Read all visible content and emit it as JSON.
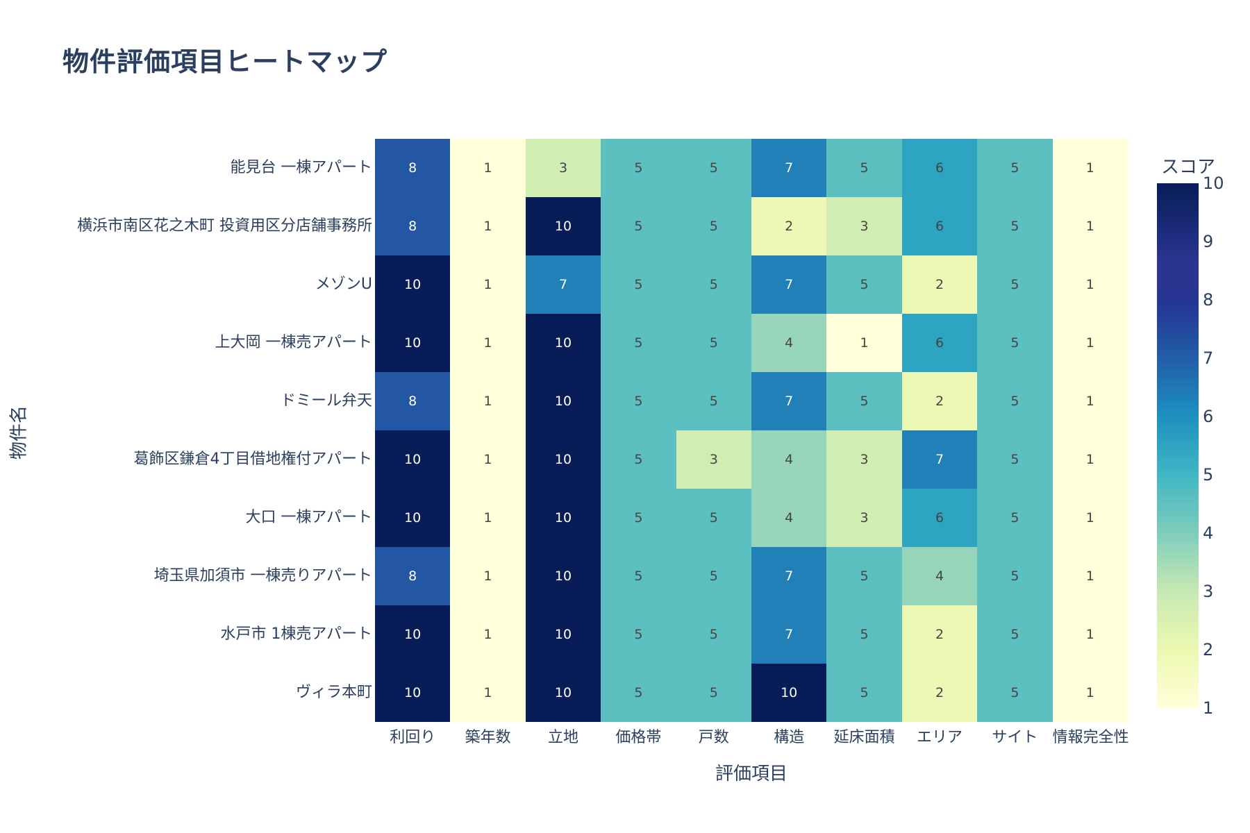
{
  "title": "物件評価項目ヒートマップ",
  "chart_data": {
    "type": "heatmap",
    "title": "物件評価項目ヒートマップ",
    "xlabel": "評価項目",
    "ylabel": "物件名",
    "x": [
      "利回り",
      "築年数",
      "立地",
      "価格帯",
      "戸数",
      "構造",
      "延床面積",
      "エリア",
      "サイト",
      "情報完全性"
    ],
    "y": [
      "能見台 一棟アパート",
      "横浜市南区花之木町 投資用区分店舗事務所",
      "メゾンU",
      "上大岡 一棟売アパート",
      "ドミール弁天",
      "葛飾区鎌倉4丁目借地権付アパート",
      "大口 一棟アパート",
      "埼玉県加須市 一棟売りアパート",
      "水戸市 1棟売アパート",
      "ヴィラ本町"
    ],
    "z": [
      [
        8,
        1,
        3,
        5,
        5,
        7,
        5,
        6,
        5,
        1
      ],
      [
        8,
        1,
        10,
        5,
        5,
        2,
        3,
        6,
        5,
        1
      ],
      [
        10,
        1,
        7,
        5,
        5,
        7,
        5,
        2,
        5,
        1
      ],
      [
        10,
        1,
        10,
        5,
        5,
        4,
        1,
        6,
        5,
        1
      ],
      [
        8,
        1,
        10,
        5,
        5,
        7,
        5,
        2,
        5,
        1
      ],
      [
        10,
        1,
        10,
        5,
        3,
        4,
        3,
        7,
        5,
        1
      ],
      [
        10,
        1,
        10,
        5,
        5,
        4,
        3,
        6,
        5,
        1
      ],
      [
        8,
        1,
        10,
        5,
        5,
        7,
        5,
        4,
        5,
        1
      ],
      [
        10,
        1,
        10,
        5,
        5,
        7,
        5,
        2,
        5,
        1
      ],
      [
        10,
        1,
        10,
        5,
        5,
        10,
        5,
        2,
        5,
        1
      ]
    ],
    "colorscale": "YlGnBu",
    "zrange": [
      1,
      10
    ],
    "colorbar": {
      "title": "スコア",
      "ticks": [
        "10",
        "9",
        "8",
        "7",
        "6",
        "5",
        "4",
        "3",
        "2",
        "1"
      ]
    },
    "cell_text_shown": true
  },
  "colors": {
    "1": "#ffffd9",
    "2": "#eef8b5",
    "3": "#d0edb4",
    "4": "#96d5b9",
    "5": "#5cbfc0",
    "6": "#2ea4c3",
    "7": "#2180b8",
    "8": "#2357a4",
    "9": "#253494",
    "10": "#081d58",
    "text_dark": "#444444",
    "text_light": "#ffffff",
    "axis_text": "#2a3f5f"
  }
}
